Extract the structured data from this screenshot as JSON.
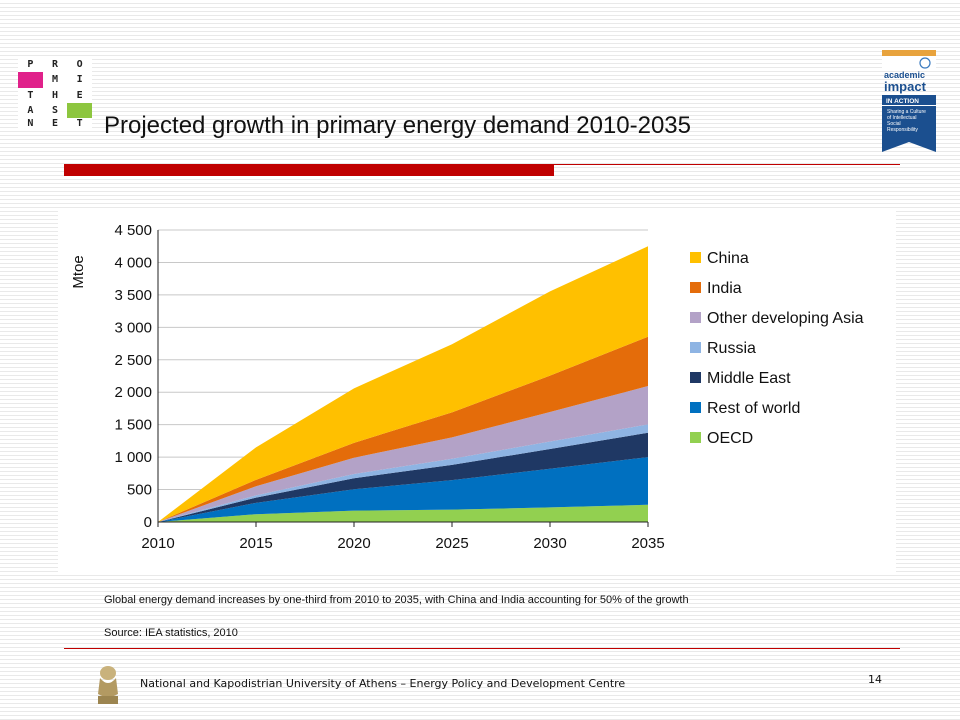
{
  "header": {
    "logo_letters": [
      "P",
      "R",
      "O",
      "",
      "M",
      "I",
      "T",
      "H",
      "E",
      "A",
      "S",
      "",
      "N",
      "E",
      "T"
    ],
    "title": "Projected growth in primary energy demand 2010-2035",
    "unai": {
      "line1": "academic",
      "line2": "impact",
      "banner": "IN ACTION",
      "tagline": "Sharing a Culture of Intellectual Social Responsibility"
    }
  },
  "chart_data": {
    "type": "area",
    "stacked": true,
    "x": [
      2010,
      2015,
      2020,
      2025,
      2030,
      2035
    ],
    "series": [
      {
        "name": "OECD",
        "color": "#92d050",
        "values": [
          0,
          120,
          175,
          190,
          225,
          265
        ]
      },
      {
        "name": "Rest of world",
        "color": "#0070c0",
        "values": [
          0,
          175,
          330,
          455,
          595,
          735
        ]
      },
      {
        "name": "Middle East",
        "color": "#1f3864",
        "values": [
          0,
          80,
          170,
          235,
          305,
          375
        ]
      },
      {
        "name": "Russia",
        "color": "#8eb4e3",
        "values": [
          0,
          35,
          65,
          95,
          115,
          130
        ]
      },
      {
        "name": "Other developing Asia",
        "color": "#b3a2c7",
        "values": [
          0,
          140,
          250,
          330,
          455,
          590
        ]
      },
      {
        "name": "India",
        "color": "#e46c0a",
        "values": [
          0,
          100,
          230,
          385,
          560,
          760
        ]
      },
      {
        "name": "China",
        "color": "#ffc000",
        "values": [
          0,
          500,
          840,
          1050,
          1300,
          1395
        ]
      }
    ],
    "ylabel": "Mtoe",
    "ylim": [
      0,
      4500
    ],
    "yticks": [
      0,
      500,
      1000,
      1500,
      2000,
      2500,
      3000,
      3500,
      4000,
      4500
    ],
    "ytick_labels": [
      "0",
      "500",
      "1 000",
      "1 500",
      "2 000",
      "2 500",
      "3 000",
      "3 500",
      "4 000",
      "4 500"
    ],
    "xticks": [
      "2010",
      "2015",
      "2020",
      "2025",
      "2030",
      "2035"
    ],
    "legend_order": [
      "China",
      "India",
      "Other developing Asia",
      "Russia",
      "Middle East",
      "Rest of world",
      "OECD"
    ],
    "legend_position": "right",
    "grid": true
  },
  "caption": "Global energy demand increases by one-third from 2010 to 2035, with China and India accounting for 50% of the growth",
  "source": "Source: IEA statistics, 2010",
  "footer": {
    "institution": "National and Kapodistrian University of Athens – Energy Policy and Development Centre",
    "page_number": "14"
  }
}
